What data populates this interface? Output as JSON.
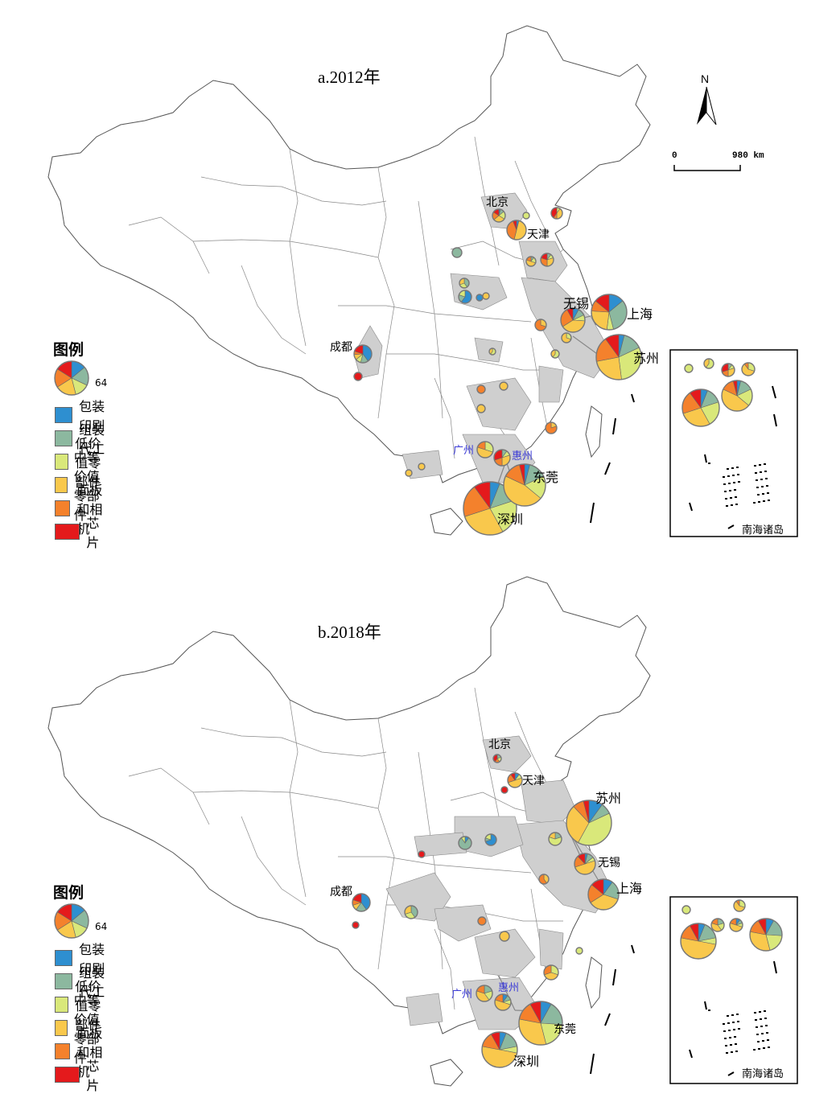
{
  "colors": {
    "packaging": "#2e8fd0",
    "assembly": "#8cb89f",
    "low": "#d9e87a",
    "mid": "#f9c84c",
    "panel": "#f4812c",
    "chip": "#e41a1c",
    "region": "#cfcfcf",
    "border": "#555555"
  },
  "legend": {
    "title": "图例",
    "size_value": "64",
    "items": [
      {
        "label": "包装印刷",
        "color": "#2e8fd0"
      },
      {
        "label": "组装代工",
        "color": "#8cb89f"
      },
      {
        "label": "低价值零部件",
        "color": "#d9e87a"
      },
      {
        "label": "中等价值零部件",
        "color": "#f9c84c"
      },
      {
        "label": "面板和相机",
        "color": "#f4812c"
      },
      {
        "label": "芯片",
        "color": "#e41a1c"
      }
    ]
  },
  "north_arrow": "N",
  "scale_bar": {
    "start": "0",
    "end": "980 km"
  },
  "inset_label": "南海诸岛",
  "panels": [
    {
      "title": "a.2012年",
      "cities": {
        "beijing": "北京",
        "tianjin": "天津",
        "wuxi": "无锡",
        "shanghai": "上海",
        "suzhou": "苏州",
        "chengdu": "成都",
        "guangzhou": "广州",
        "huizhou": "惠州",
        "dongguan": "东莞",
        "shenzhen": "深圳"
      }
    },
    {
      "title": "b.2018年",
      "cities": {
        "beijing": "北京",
        "tianjin": "天津",
        "wuxi": "无锡",
        "shanghai": "上海",
        "suzhou": "苏州",
        "chengdu": "成都",
        "guangzhou": "广州",
        "huizhou": "惠州",
        "dongguan": "东莞",
        "shenzhen": "深圳"
      }
    }
  ]
}
